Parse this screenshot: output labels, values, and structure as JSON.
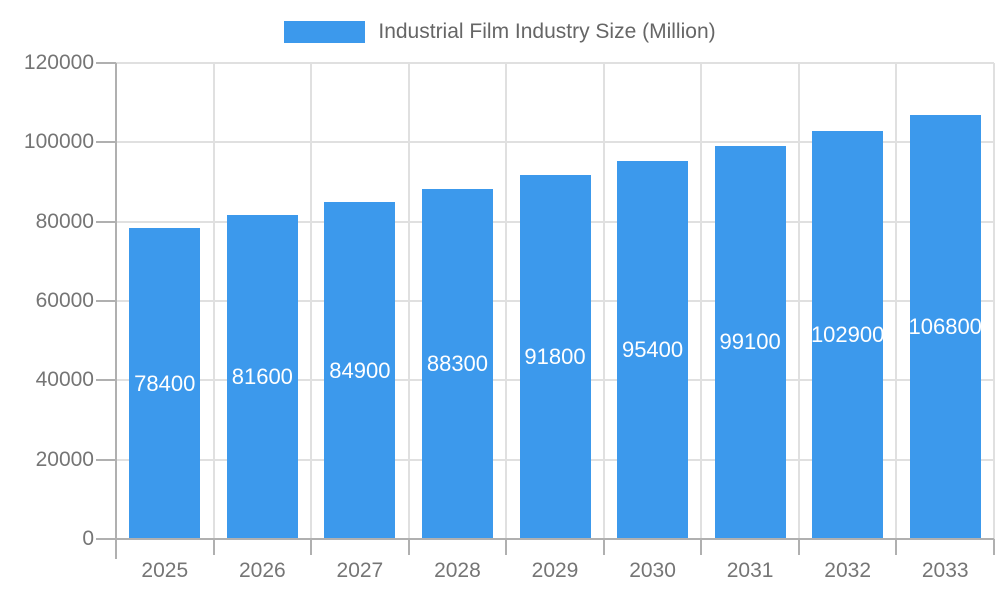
{
  "chart_data": {
    "type": "bar",
    "series_name": "Industrial Film Industry Size (Million)",
    "categories": [
      "2025",
      "2026",
      "2027",
      "2028",
      "2029",
      "2030",
      "2031",
      "2032",
      "2033"
    ],
    "values": [
      78400,
      81600,
      84900,
      88300,
      91800,
      95400,
      99100,
      102900,
      106800
    ],
    "title": "",
    "xlabel": "",
    "ylabel": "",
    "ylim": [
      0,
      120000
    ],
    "yticks": [
      0,
      20000,
      40000,
      60000,
      80000,
      100000,
      120000
    ],
    "grid": true,
    "legend_position": "top",
    "bar_labels_visible": true,
    "colors": {
      "bar": "#3C99EC",
      "bar_label": "#FFFFFF",
      "grid": "#E0E0E0",
      "axis": "#B0B0B0",
      "tick_text": "#757575",
      "legend_text": "#666666",
      "background": "#FFFFFF"
    }
  }
}
